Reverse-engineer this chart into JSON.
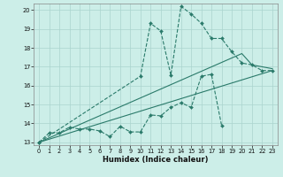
{
  "xlabel": "Humidex (Indice chaleur)",
  "bg_color": "#cceee8",
  "grid_color": "#aad4ce",
  "line_color": "#2a7a6a",
  "xlim": [
    -0.5,
    23.5
  ],
  "ylim": [
    12.85,
    20.35
  ],
  "xticks": [
    0,
    1,
    2,
    3,
    4,
    5,
    6,
    7,
    8,
    9,
    10,
    11,
    12,
    13,
    14,
    15,
    16,
    17,
    18,
    19,
    20,
    21,
    22,
    23
  ],
  "yticks": [
    13,
    14,
    15,
    16,
    17,
    18,
    19,
    20
  ],
  "lines": [
    {
      "x": [
        0,
        1,
        2,
        3,
        4,
        5,
        6,
        7,
        8,
        9,
        10,
        11,
        12,
        13,
        14,
        15,
        16,
        17,
        18
      ],
      "y": [
        13.0,
        13.5,
        13.5,
        13.8,
        13.7,
        13.7,
        13.6,
        13.3,
        13.85,
        13.55,
        13.55,
        14.45,
        14.4,
        14.85,
        15.1,
        14.85,
        16.5,
        16.6,
        13.9
      ],
      "style": "dashed_marker"
    },
    {
      "x": [
        0,
        10,
        11,
        12,
        13,
        14,
        15,
        16,
        17,
        18,
        19,
        20,
        21,
        22,
        23
      ],
      "y": [
        13.0,
        16.5,
        19.3,
        18.9,
        16.55,
        20.2,
        19.8,
        19.3,
        18.5,
        18.5,
        17.8,
        17.2,
        17.1,
        16.8,
        16.8
      ],
      "style": "dashed_marker"
    },
    {
      "x": [
        0,
        23
      ],
      "y": [
        13.0,
        16.8
      ],
      "style": "solid"
    },
    {
      "comment": "straight line from 0,13 to 20,17.7 to 23,16.9",
      "x": [
        0,
        20,
        21,
        23
      ],
      "y": [
        13.0,
        17.7,
        17.1,
        16.9
      ],
      "style": "solid"
    }
  ]
}
